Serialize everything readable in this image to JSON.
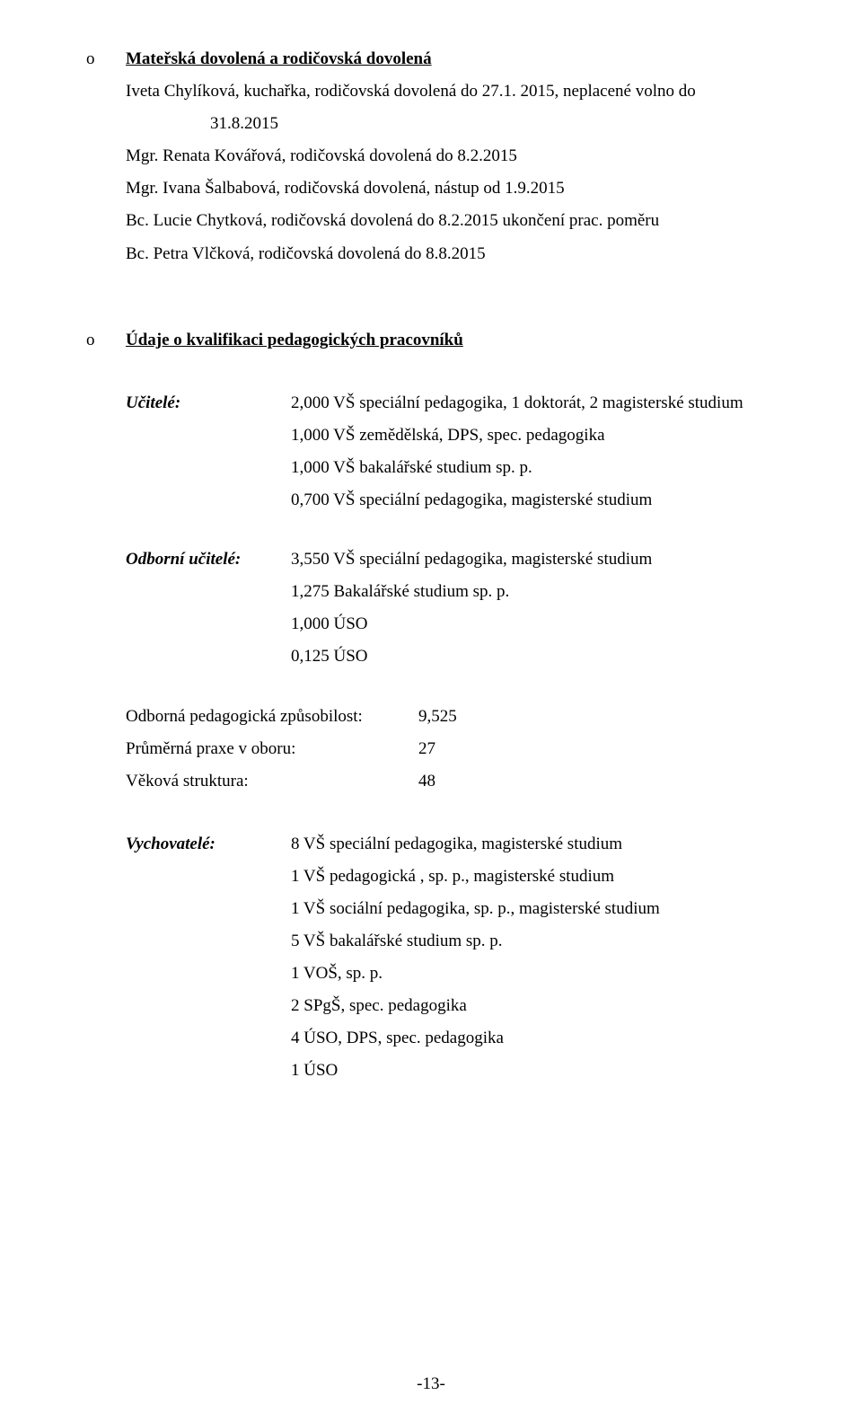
{
  "section1": {
    "heading": "Mateřská dovolená a rodičovská dovolená",
    "lines": [
      "Iveta Chylíková, kuchařka, rodičovská dovolená do 27.1. 2015, neplacené volno do",
      "31.8.2015",
      "Mgr. Renata Kovářová, rodičovská dovolená do 8.2.2015",
      "Mgr. Ivana Šalbabová, rodičovská dovolená, nástup od 1.9.2015",
      "Bc. Lucie Chytková, rodičovská dovolená do 8.2.2015 ukončení prac. poměru",
      "Bc. Petra Vlčková, rodičovská dovolená do 8.8.2015"
    ]
  },
  "section2": {
    "heading": "Údaje o kvalifikaci pedagogických pracovníků"
  },
  "ucitele": {
    "label": "Učitelé:",
    "lines": [
      "2,000 VŠ speciální pedagogika, 1 doktorát, 2 magisterské studium",
      "1,000 VŠ zemědělská, DPS, spec. pedagogika",
      "1,000 VŠ bakalářské studium sp. p.",
      "0,700 VŠ speciální pedagogika, magisterské studium"
    ]
  },
  "odborni": {
    "label": "Odborní učitelé:",
    "lines": [
      "3,550 VŠ speciální pedagogika, magisterské studium",
      "1,275 Bakalářské studium sp. p.",
      "1,000 ÚSO",
      "0,125 ÚSO"
    ]
  },
  "stats": {
    "rows": [
      {
        "label": "Odborná pedagogická způsobilost:",
        "value": "9,525"
      },
      {
        "label": "Průměrná praxe v oboru:",
        "value": "27"
      },
      {
        "label": "Věková struktura:",
        "value": "48"
      }
    ]
  },
  "vychovatele": {
    "label": "Vychovatelé:",
    "lines": [
      "8 VŠ speciální pedagogika, magisterské studium",
      "1 VŠ pedagogická , sp. p., magisterské studium",
      "1 VŠ sociální pedagogika, sp. p., magisterské studium",
      "5 VŠ bakalářské studium sp. p.",
      "1 VOŠ, sp. p.",
      "2 SPgŠ, spec. pedagogika",
      "4 ÚSO, DPS, spec. pedagogika",
      "1 ÚSO"
    ]
  },
  "pageNumber": "-13-"
}
